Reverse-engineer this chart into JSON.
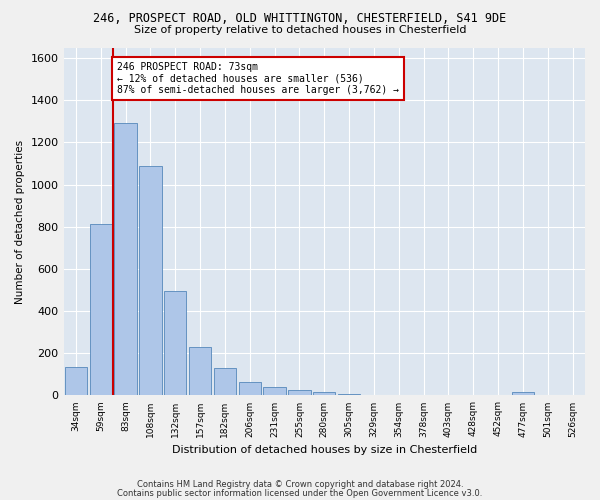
{
  "title1": "246, PROSPECT ROAD, OLD WHITTINGTON, CHESTERFIELD, S41 9DE",
  "title2": "Size of property relative to detached houses in Chesterfield",
  "xlabel": "Distribution of detached houses by size in Chesterfield",
  "ylabel": "Number of detached properties",
  "footer1": "Contains HM Land Registry data © Crown copyright and database right 2024.",
  "footer2": "Contains public sector information licensed under the Open Government Licence v3.0.",
  "bin_labels": [
    "34sqm",
    "59sqm",
    "83sqm",
    "108sqm",
    "132sqm",
    "157sqm",
    "182sqm",
    "206sqm",
    "231sqm",
    "255sqm",
    "280sqm",
    "305sqm",
    "329sqm",
    "354sqm",
    "378sqm",
    "403sqm",
    "428sqm",
    "452sqm",
    "477sqm",
    "501sqm",
    "526sqm"
  ],
  "bar_values": [
    135,
    815,
    1290,
    1090,
    495,
    230,
    130,
    65,
    38,
    25,
    15,
    8,
    3,
    2,
    2,
    1,
    1,
    1,
    15,
    1,
    1
  ],
  "bar_color": "#aec6e8",
  "bar_edge_color": "#5588bb",
  "vline_x": 1.5,
  "annotation_text": "246 PROSPECT ROAD: 73sqm\n← 12% of detached houses are smaller (536)\n87% of semi-detached houses are larger (3,762) →",
  "annotation_box_color": "#ffffff",
  "annotation_box_edge": "#cc0000",
  "vline_color": "#cc0000",
  "ylim": [
    0,
    1650
  ],
  "yticks": [
    0,
    200,
    400,
    600,
    800,
    1000,
    1200,
    1400,
    1600
  ],
  "bg_color": "#dde6f0",
  "grid_color": "#ffffff",
  "fig_bg_color": "#f0f0f0"
}
